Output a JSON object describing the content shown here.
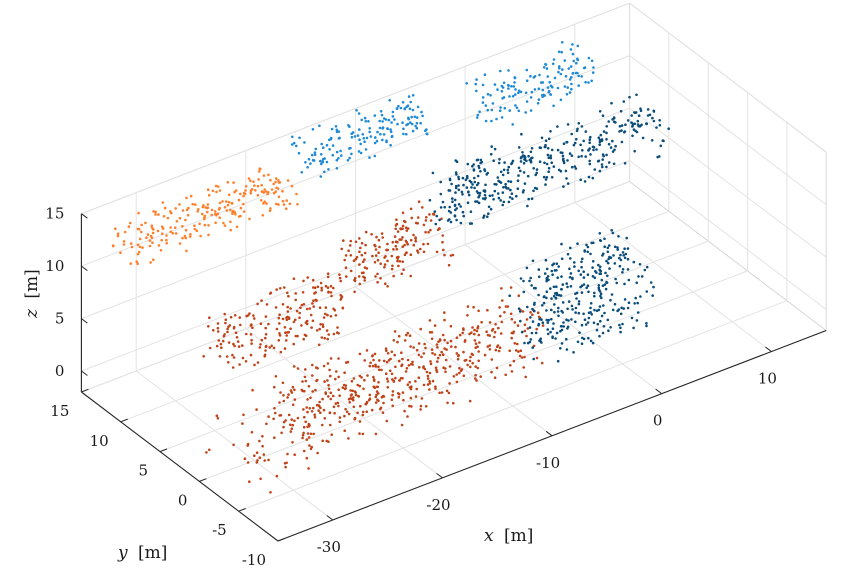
{
  "chart_data": {
    "type": "scatter",
    "subtype": "3d-point-cloud",
    "title": "",
    "xlabel": {
      "symbol": "x",
      "unit": "[m]"
    },
    "ylabel": {
      "symbol": "y",
      "unit": "[m]"
    },
    "zlabel": {
      "symbol": "z",
      "unit": "[m]"
    },
    "xlim": [
      -35,
      15
    ],
    "ylim": [
      -10,
      15
    ],
    "zlim": [
      -2,
      15
    ],
    "x_ticks": [
      -30,
      -20,
      -10,
      0,
      10
    ],
    "x_tick_labels": [
      "-30",
      "-20",
      "-10",
      "0",
      "10"
    ],
    "y_ticks": [
      15,
      10,
      5,
      0,
      -5,
      -10
    ],
    "y_tick_labels": [
      "15",
      "10",
      "5",
      "0",
      "-5",
      "-10"
    ],
    "z_ticks": [
      0,
      5,
      10,
      15
    ],
    "z_tick_labels": [
      "0",
      "5",
      "10",
      "15"
    ],
    "grid": true,
    "legend": "none",
    "series": [
      {
        "color": "#c0441a",
        "description_color": "dark orange / rust"
      },
      {
        "color": "#ff7f2a",
        "description_color": "light orange"
      },
      {
        "color": "#0a4c7a",
        "description_color": "dark blue"
      },
      {
        "color": "#1e8ad6",
        "description_color": "light blue"
      }
    ]
  }
}
